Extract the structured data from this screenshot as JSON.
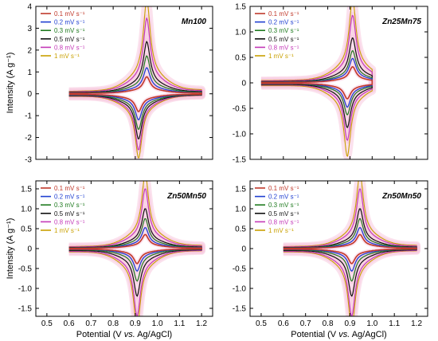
{
  "figure": {
    "ylabel": "Intensity (A g⁻¹)",
    "xlabel_parts": [
      "Potential (V ",
      "vs.",
      " Ag/AgCl)"
    ]
  },
  "legend_entries": [
    "0.1 mV s⁻¹",
    "0.2 mV s⁻¹",
    "0.3 mV s⁻¹",
    "0.5 mV s⁻¹",
    "0.8 mV s⁻¹",
    "1 mV s⁻¹"
  ],
  "colors": {
    "series": [
      "#c0392b",
      "#1f3fd1",
      "#1f7a1f",
      "#111111",
      "#c43ab8",
      "#c9a000"
    ],
    "axis": "#000000",
    "envelope": "#f7c8de"
  },
  "chart_data": [
    {
      "type": "line",
      "title": "Mn100",
      "xlim": [
        0.45,
        1.25
      ],
      "ylim": [
        -3,
        4
      ],
      "yticks": [
        -3,
        -2,
        -1,
        0,
        1,
        2,
        3,
        4
      ],
      "xticks": [
        0.5,
        0.6,
        0.7,
        0.8,
        0.9,
        1.0,
        1.1,
        1.2
      ],
      "show_xticklabels": false,
      "show_yaxis_label": true,
      "show_xaxis_label": false,
      "grid": false,
      "legend_position": "top-left",
      "curve_range": [
        0.6,
        1.2
      ],
      "oxidation_peak": {
        "x": 0.952,
        "heights": [
          0.62,
          0.95,
          1.38,
          1.9,
          2.75,
          3.45
        ]
      },
      "reduction_peak": {
        "x": 0.915,
        "heights": [
          -0.65,
          -0.95,
          -1.3,
          -1.65,
          -2.05,
          -2.35
        ]
      },
      "series": [
        {
          "name": "0.1 mV s⁻¹",
          "ox_peak": 0.62,
          "red_peak": -0.65
        },
        {
          "name": "0.2 mV s⁻¹",
          "ox_peak": 0.95,
          "red_peak": -0.95
        },
        {
          "name": "0.3 mV s⁻¹",
          "ox_peak": 1.38,
          "red_peak": -1.3
        },
        {
          "name": "0.5 mV s⁻¹",
          "ox_peak": 1.9,
          "red_peak": -1.65
        },
        {
          "name": "0.8 mV s⁻¹",
          "ox_peak": 2.75,
          "red_peak": -2.05
        },
        {
          "name": "1 mV s⁻¹",
          "ox_peak": 3.45,
          "red_peak": -2.35
        }
      ]
    },
    {
      "type": "line",
      "title": "Zn25Mn75",
      "xlim": [
        0.45,
        1.25
      ],
      "ylim": [
        -1.5,
        1.5
      ],
      "yticks": [
        -1.5,
        -1.0,
        -0.5,
        0,
        0.5,
        1.0,
        1.5
      ],
      "xticks": [
        0.5,
        0.6,
        0.7,
        0.8,
        0.9,
        1.0,
        1.1,
        1.2
      ],
      "show_xticklabels": false,
      "show_yaxis_label": false,
      "show_xaxis_label": false,
      "grid": false,
      "legend_position": "top-left",
      "curve_range": [
        0.5,
        1.0
      ],
      "oxidation_peak": {
        "x": 0.912,
        "heights": [
          0.25,
          0.38,
          0.5,
          0.7,
          1.05,
          1.3
        ]
      },
      "reduction_peak": {
        "x": 0.888,
        "heights": [
          -0.25,
          -0.38,
          -0.5,
          -0.7,
          -0.9,
          -1.15
        ]
      },
      "series": [
        {
          "name": "0.1 mV s⁻¹",
          "ox_peak": 0.25,
          "red_peak": -0.25
        },
        {
          "name": "0.2 mV s⁻¹",
          "ox_peak": 0.38,
          "red_peak": -0.38
        },
        {
          "name": "0.3 mV s⁻¹",
          "ox_peak": 0.5,
          "red_peak": -0.5
        },
        {
          "name": "0.5 mV s⁻¹",
          "ox_peak": 0.7,
          "red_peak": -0.7
        },
        {
          "name": "0.8 mV s⁻¹",
          "ox_peak": 1.05,
          "red_peak": -0.9
        },
        {
          "name": "1 mV s⁻¹",
          "ox_peak": 1.3,
          "red_peak": -1.15
        }
      ]
    },
    {
      "type": "line",
      "title": "Zn50Mn50",
      "xlim": [
        0.45,
        1.25
      ],
      "ylim": [
        -1.7,
        1.7
      ],
      "yticks": [
        -1.5,
        -1.0,
        -0.5,
        0,
        0.5,
        1.0,
        1.5
      ],
      "xticks": [
        0.5,
        0.6,
        0.7,
        0.8,
        0.9,
        1.0,
        1.1,
        1.2
      ],
      "show_xticklabels": true,
      "show_yaxis_label": true,
      "show_xaxis_label": true,
      "grid": false,
      "legend_position": "top-left",
      "curve_range": [
        0.6,
        1.2
      ],
      "oxidation_peak": {
        "x": 0.945,
        "heights": [
          0.28,
          0.42,
          0.6,
          0.8,
          1.2,
          1.5
        ]
      },
      "reduction_peak": {
        "x": 0.908,
        "heights": [
          -0.3,
          -0.45,
          -0.65,
          -0.95,
          -1.35,
          -1.6
        ]
      },
      "series": [
        {
          "name": "0.1 mV s⁻¹",
          "ox_peak": 0.28,
          "red_peak": -0.3
        },
        {
          "name": "0.2 mV s⁻¹",
          "ox_peak": 0.42,
          "red_peak": -0.45
        },
        {
          "name": "0.3 mV s⁻¹",
          "ox_peak": 0.6,
          "red_peak": -0.65
        },
        {
          "name": "0.5 mV s⁻¹",
          "ox_peak": 0.8,
          "red_peak": -0.95
        },
        {
          "name": "0.8 mV s⁻¹",
          "ox_peak": 1.2,
          "red_peak": -1.35
        },
        {
          "name": "1 mV s⁻¹",
          "ox_peak": 1.5,
          "red_peak": -1.6
        }
      ]
    },
    {
      "type": "line",
      "title": "Zn50Mn50",
      "xlim": [
        0.45,
        1.25
      ],
      "ylim": [
        -1.7,
        1.7
      ],
      "yticks": [
        -1.5,
        -1.0,
        -0.5,
        0,
        0.5,
        1.0,
        1.5
      ],
      "xticks": [
        0.5,
        0.6,
        0.7,
        0.8,
        0.9,
        1.0,
        1.1,
        1.2
      ],
      "show_xticklabels": true,
      "show_yaxis_label": false,
      "show_xaxis_label": true,
      "grid": false,
      "legend_position": "top-left",
      "curve_range": [
        0.6,
        1.2
      ],
      "oxidation_peak": {
        "x": 0.945,
        "heights": [
          0.28,
          0.42,
          0.6,
          0.8,
          1.2,
          1.5
        ]
      },
      "reduction_peak": {
        "x": 0.908,
        "heights": [
          -0.3,
          -0.45,
          -0.65,
          -0.95,
          -1.35,
          -1.6
        ]
      },
      "series": [
        {
          "name": "0.1 mV s⁻¹",
          "ox_peak": 0.28,
          "red_peak": -0.3
        },
        {
          "name": "0.2 mV s⁻¹",
          "ox_peak": 0.42,
          "red_peak": -0.45
        },
        {
          "name": "0.3 mV s⁻¹",
          "ox_peak": 0.6,
          "red_peak": -0.65
        },
        {
          "name": "0.5 mV s⁻¹",
          "ox_peak": 0.8,
          "red_peak": -0.95
        },
        {
          "name": "0.8 mV s⁻¹",
          "ox_peak": 1.2,
          "red_peak": -1.35
        },
        {
          "name": "1 mV s⁻¹",
          "ox_peak": 1.5,
          "red_peak": -1.6
        }
      ]
    }
  ]
}
